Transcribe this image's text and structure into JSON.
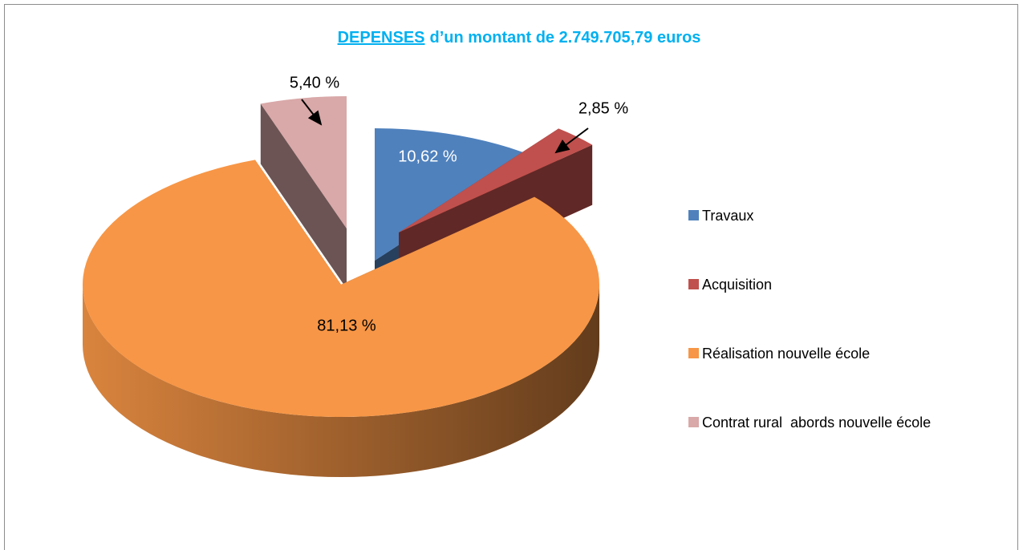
{
  "chart_data": {
    "type": "pie3d",
    "title": [
      "DEPENSES",
      "d’un montant de 2.749.705,79 euros"
    ],
    "categories": [
      "Travaux",
      "Acquisition",
      "Réalisation nouvelle école",
      "Contrat rural  abords nouvelle école"
    ],
    "values": [
      10.62,
      2.85,
      81.13,
      5.4
    ],
    "value_labels": [
      "10,62 %",
      "2,85 %",
      "81,13 %",
      "5,40 %"
    ],
    "colors": [
      "#4f81bd",
      "#c0504d",
      "#f79646",
      "#d9a8a8"
    ],
    "legend": "right"
  }
}
